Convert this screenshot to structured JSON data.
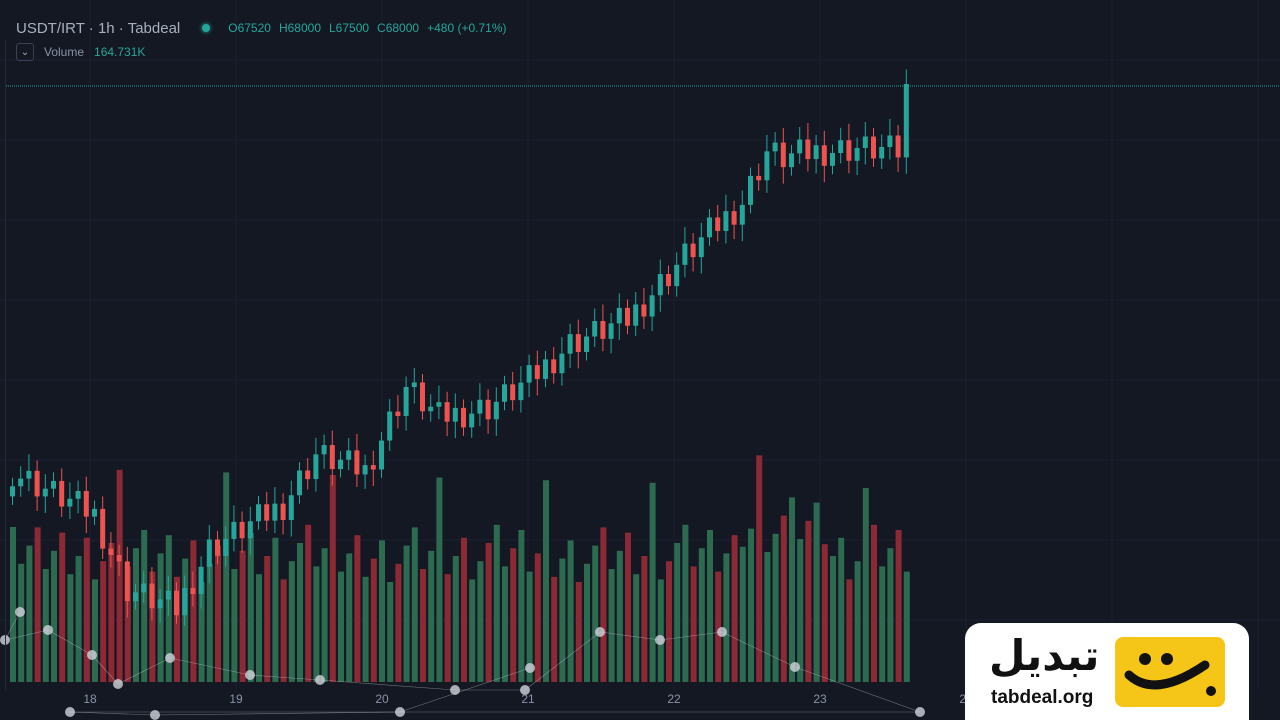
{
  "header": {
    "symbol": "USDT/IRT · 1h · Tabdeal",
    "ohlc": {
      "open": "O67520",
      "high": "H68000",
      "low": "L67500",
      "close": "C68000",
      "change": "+480 (+0.71%)"
    },
    "volume_label": "Volume",
    "volume_value": "164.731K"
  },
  "brand": {
    "name_fa": "تبدیل",
    "url": "tabdeal.org"
  },
  "colors": {
    "up": "#26a69a",
    "down": "#ef5350",
    "up_volume": "#2c6b50",
    "down_volume": "#8b2a35",
    "background": "#141823"
  },
  "chart_data": {
    "type": "candlestick",
    "x_tick_labels": [
      "18",
      "19",
      "20",
      "21",
      "22",
      "23",
      "24"
    ],
    "series": [
      {
        "anchors": [
          {
            "x": 0,
            "close": 56500
          },
          {
            "x": 10,
            "close": 55200
          },
          {
            "x": 14,
            "close": 53000
          },
          {
            "x": 20,
            "close": 52400
          },
          {
            "x": 24,
            "close": 54200
          },
          {
            "x": 33,
            "close": 55500
          },
          {
            "x": 37,
            "close": 57000
          },
          {
            "x": 43,
            "close": 56500
          },
          {
            "x": 48,
            "close": 59000
          },
          {
            "x": 52,
            "close": 58100
          },
          {
            "x": 58,
            "close": 58400
          },
          {
            "x": 63,
            "close": 59200
          },
          {
            "x": 68,
            "close": 60300
          },
          {
            "x": 75,
            "close": 61000
          },
          {
            "x": 82,
            "close": 62900
          },
          {
            "x": 89,
            "close": 64500
          },
          {
            "x": 92,
            "close": 66000
          },
          {
            "x": 94,
            "close": 65800
          },
          {
            "x": 98,
            "close": 66000
          },
          {
            "x": 103,
            "close": 66100
          },
          {
            "x": 108,
            "close": 66000
          },
          {
            "x": 109,
            "close": 68000
          }
        ]
      },
      {
        "name": "Volume",
        "last": "164.731K"
      }
    ],
    "last_high": 68000
  }
}
